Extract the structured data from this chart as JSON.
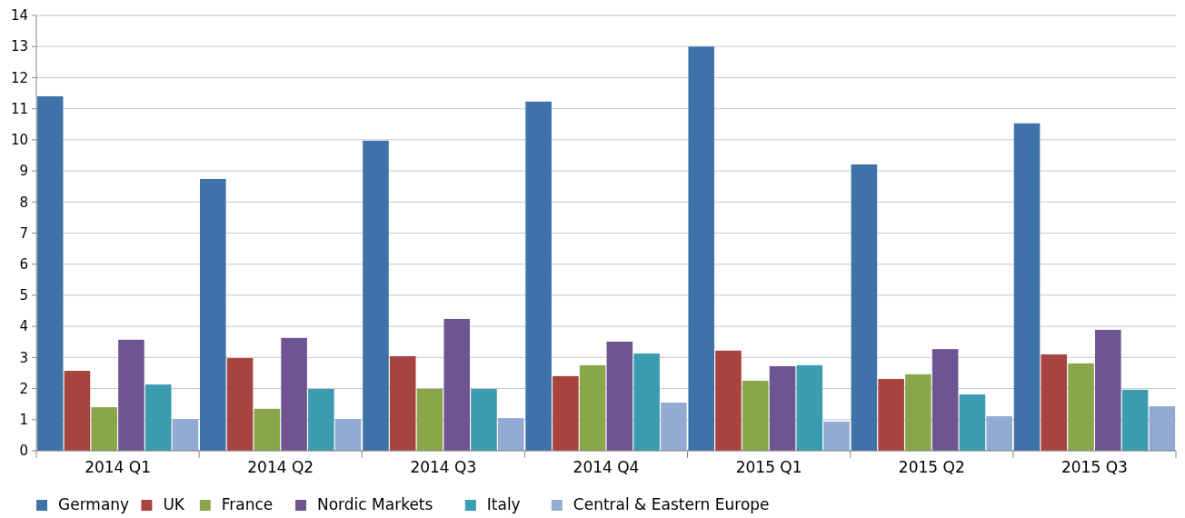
{
  "chart_data": {
    "type": "bar",
    "categories": [
      "2014 Q1",
      "2014 Q2",
      "2014 Q3",
      "2014 Q4",
      "2015 Q1",
      "2015 Q2",
      "2015 Q3"
    ],
    "series": [
      {
        "name": "Germany",
        "color": "#3e72a8",
        "values": [
          11.4,
          8.74,
          9.97,
          11.23,
          13.0,
          9.21,
          10.53
        ]
      },
      {
        "name": "UK",
        "color": "#a84440",
        "values": [
          2.57,
          2.98,
          3.04,
          2.4,
          3.22,
          2.31,
          3.1
        ]
      },
      {
        "name": "France",
        "color": "#8aa64a",
        "values": [
          1.4,
          1.35,
          1.99,
          2.75,
          2.25,
          2.46,
          2.81
        ]
      },
      {
        "name": "Nordic Markets",
        "color": "#6e5591",
        "values": [
          3.57,
          3.63,
          4.24,
          3.51,
          2.72,
          3.27,
          3.89
        ]
      },
      {
        "name": "Italy",
        "color": "#3b9bb0",
        "values": [
          2.13,
          1.99,
          1.99,
          3.13,
          2.75,
          1.81,
          1.96
        ]
      },
      {
        "name": "Central & Eastern Europe",
        "color": "#93abd3",
        "values": [
          1.02,
          1.02,
          1.05,
          1.55,
          0.94,
          1.11,
          1.43
        ]
      }
    ],
    "ylim": [
      0,
      14
    ],
    "yticks": [
      0,
      1,
      2,
      3,
      4,
      5,
      6,
      7,
      8,
      9,
      10,
      11,
      12,
      13,
      14
    ],
    "grid": "y",
    "legend": "bottom"
  }
}
